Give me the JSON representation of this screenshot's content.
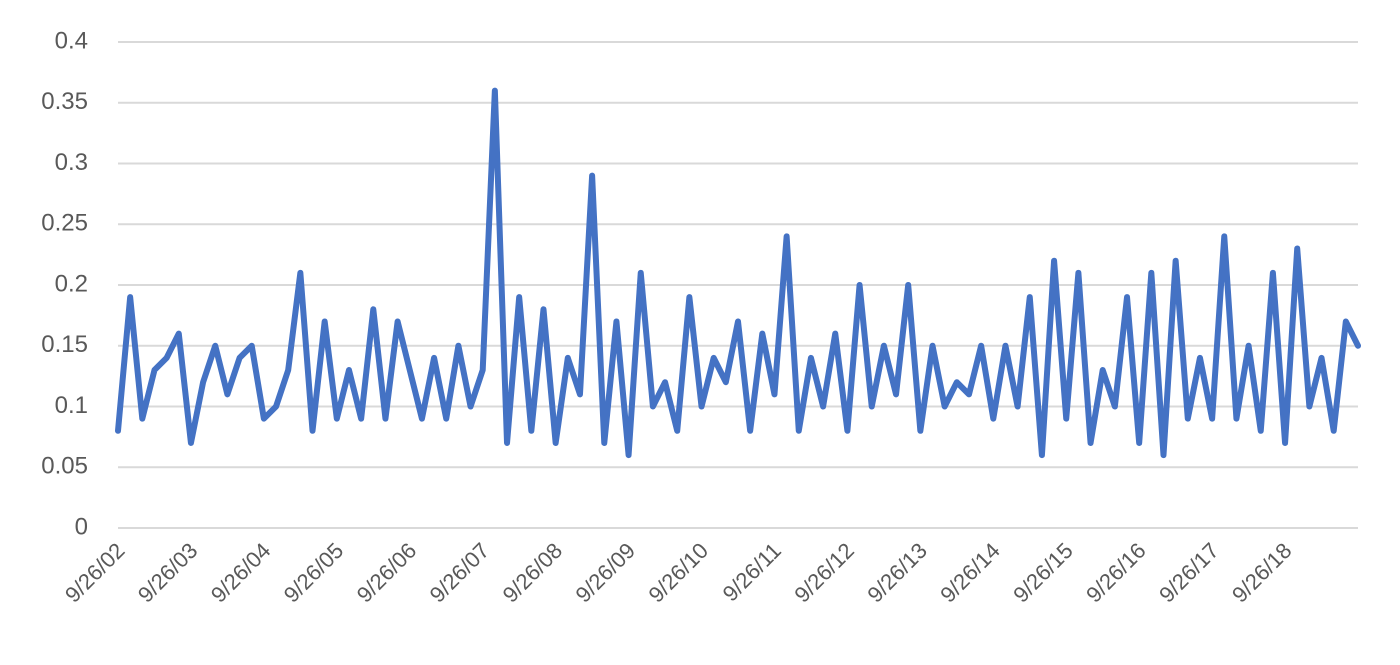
{
  "chart_data": {
    "type": "line",
    "categories": [
      "9/26/02",
      null,
      null,
      null,
      null,
      null,
      "9/26/03",
      null,
      null,
      null,
      null,
      null,
      "9/26/04",
      null,
      null,
      null,
      null,
      null,
      "9/26/05",
      null,
      null,
      null,
      null,
      null,
      "9/26/06",
      null,
      null,
      null,
      null,
      null,
      "9/26/07",
      null,
      null,
      null,
      null,
      null,
      "9/26/08",
      null,
      null,
      null,
      null,
      null,
      "9/26/09",
      null,
      null,
      null,
      null,
      null,
      "9/26/10",
      null,
      null,
      null,
      null,
      null,
      "9/26/11",
      null,
      null,
      null,
      null,
      null,
      "9/26/12",
      null,
      null,
      null,
      null,
      null,
      "9/26/13",
      null,
      null,
      null,
      null,
      null,
      "9/26/14",
      null,
      null,
      null,
      null,
      null,
      "9/26/15",
      null,
      null,
      null,
      null,
      null,
      "9/26/16",
      null,
      null,
      null,
      null,
      null,
      "9/26/17",
      null,
      null,
      null,
      null,
      null,
      "9/26/18",
      null,
      null,
      null,
      null,
      null,
      null
    ],
    "values": [
      0.08,
      0.19,
      0.09,
      0.13,
      0.14,
      0.16,
      0.07,
      0.12,
      0.15,
      0.11,
      0.14,
      0.15,
      0.09,
      0.1,
      0.13,
      0.21,
      0.08,
      0.17,
      0.09,
      0.13,
      0.09,
      0.18,
      0.09,
      0.17,
      0.13,
      0.09,
      0.14,
      0.09,
      0.15,
      0.1,
      0.13,
      0.36,
      0.07,
      0.19,
      0.08,
      0.18,
      0.07,
      0.14,
      0.11,
      0.29,
      0.07,
      0.17,
      0.06,
      0.21,
      0.1,
      0.12,
      0.08,
      0.19,
      0.1,
      0.14,
      0.12,
      0.17,
      0.08,
      0.16,
      0.11,
      0.24,
      0.08,
      0.14,
      0.1,
      0.16,
      0.08,
      0.2,
      0.1,
      0.15,
      0.11,
      0.2,
      0.08,
      0.15,
      0.1,
      0.12,
      0.11,
      0.15,
      0.09,
      0.15,
      0.1,
      0.19,
      0.06,
      0.22,
      0.09,
      0.21,
      0.07,
      0.13,
      0.1,
      0.19,
      0.07,
      0.21,
      0.06,
      0.22,
      0.09,
      0.14,
      0.09,
      0.24,
      0.09,
      0.15,
      0.08,
      0.21,
      0.07,
      0.23,
      0.1,
      0.14,
      0.08,
      0.17,
      0.15
    ],
    "color": "#4472c4",
    "ylim": [
      0,
      0.4
    ],
    "yticks": [
      0,
      0.05,
      0.1,
      0.15,
      0.2,
      0.25,
      0.3,
      0.35,
      0.4
    ],
    "grid": true
  }
}
